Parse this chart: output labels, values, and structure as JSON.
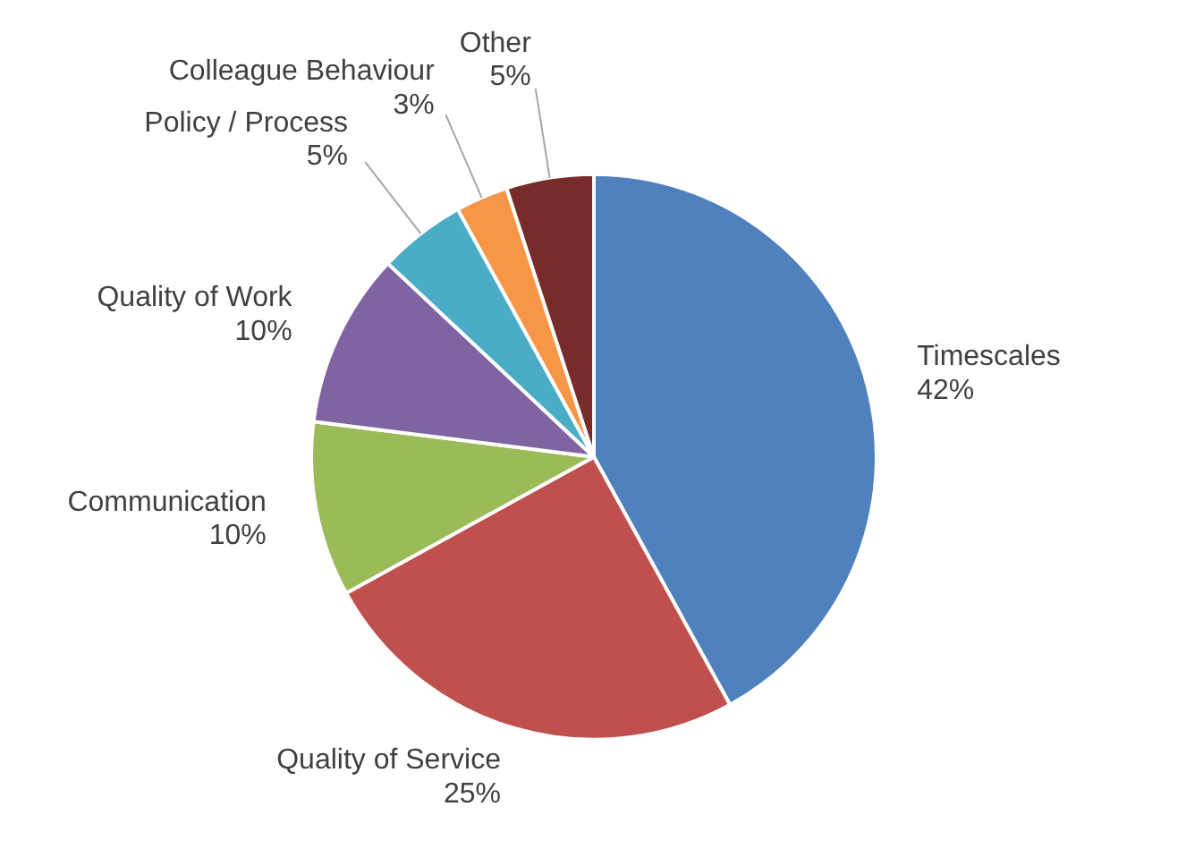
{
  "chart_data": {
    "type": "pie",
    "categories": [
      "Timescales",
      "Quality of Service",
      "Communication",
      "Quality of Work",
      "Policy / Process",
      "Colleague Behaviour",
      "Other"
    ],
    "values": [
      42,
      25,
      10,
      10,
      5,
      3,
      5
    ],
    "colors": [
      "#4f81bd",
      "#c0504d",
      "#9bbb59",
      "#8064a2",
      "#4bacc6",
      "#f79646",
      "#772c2a"
    ],
    "value_labels": [
      "42%",
      "25%",
      "10%",
      "10%",
      "5%",
      "3%",
      "5%"
    ]
  }
}
